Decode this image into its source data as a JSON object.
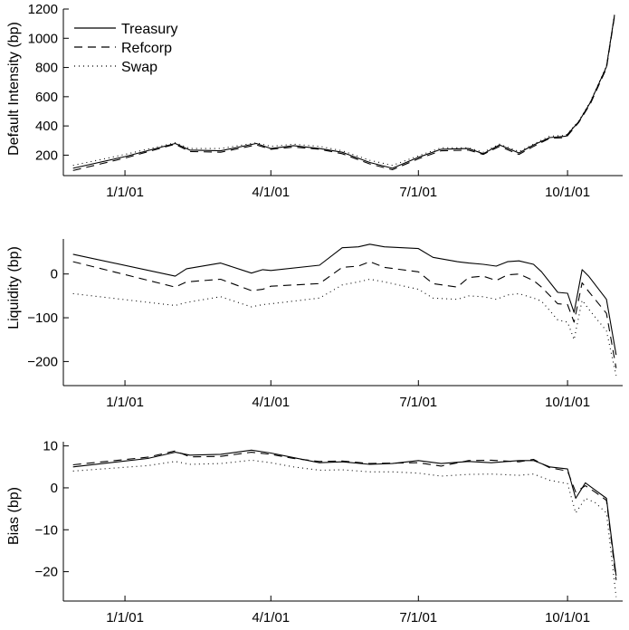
{
  "colors": {
    "axis": "#000000",
    "line": "#000000",
    "background": "#ffffff"
  },
  "chart_data": [
    {
      "type": "line",
      "id": "default",
      "ylabel": "Default Intensity (bp)",
      "xlabel": "",
      "ylim": [
        60,
        1200
      ],
      "yticks": [
        200,
        400,
        600,
        800,
        1000,
        1200
      ],
      "xlim": [
        "2000-11-24",
        "2001-11-04"
      ],
      "xticks": [
        "2001-01-01",
        "2001-04-01",
        "2001-07-01",
        "2001-10-01"
      ],
      "xtick_labels": [
        "1/1/01",
        "4/1/01",
        "7/1/01",
        "10/1/01"
      ],
      "legend": {
        "location": "top-left",
        "entries": [
          "Treasury",
          "Refcorp",
          "Swap"
        ]
      },
      "grid": false,
      "series": [
        {
          "name": "Treasury",
          "style": "solid",
          "x": [
            "2000-11-30",
            "2001-01-01",
            "2001-02-01",
            "2001-02-10",
            "2001-03-01",
            "2001-03-23",
            "2001-04-01",
            "2001-04-15",
            "2001-05-01",
            "2001-05-15",
            "2001-06-01",
            "2001-06-15",
            "2001-07-01",
            "2001-07-15",
            "2001-08-01",
            "2001-08-10",
            "2001-08-20",
            "2001-09-01",
            "2001-09-10",
            "2001-09-20",
            "2001-09-30",
            "2001-10-08",
            "2001-10-15",
            "2001-10-25",
            "2001-10-30"
          ],
          "y": [
            110,
            190,
            280,
            235,
            230,
            280,
            245,
            265,
            245,
            220,
            150,
            110,
            185,
            240,
            245,
            210,
            270,
            215,
            270,
            320,
            330,
            430,
            560,
            805,
            1160
          ]
        },
        {
          "name": "Refcorp",
          "style": "dashed",
          "x": [
            "2000-11-30",
            "2001-01-01",
            "2001-02-01",
            "2001-02-10",
            "2001-03-01",
            "2001-03-23",
            "2001-04-01",
            "2001-04-15",
            "2001-05-01",
            "2001-05-15",
            "2001-06-01",
            "2001-06-15",
            "2001-07-01",
            "2001-07-15",
            "2001-08-01",
            "2001-08-10",
            "2001-08-20",
            "2001-09-01",
            "2001-09-10",
            "2001-09-20",
            "2001-09-30",
            "2001-10-08",
            "2001-10-15",
            "2001-10-25",
            "2001-10-30"
          ],
          "y": [
            95,
            180,
            275,
            225,
            220,
            270,
            240,
            255,
            240,
            210,
            140,
            100,
            175,
            230,
            235,
            205,
            260,
            205,
            260,
            315,
            320,
            425,
            550,
            795,
            1150
          ]
        },
        {
          "name": "Swap",
          "style": "dotted",
          "x": [
            "2000-11-30",
            "2001-01-01",
            "2001-02-01",
            "2001-02-10",
            "2001-03-01",
            "2001-03-23",
            "2001-04-01",
            "2001-04-15",
            "2001-05-01",
            "2001-05-15",
            "2001-06-01",
            "2001-06-15",
            "2001-07-01",
            "2001-07-15",
            "2001-08-01",
            "2001-08-10",
            "2001-08-20",
            "2001-09-01",
            "2001-09-10",
            "2001-09-20",
            "2001-09-30",
            "2001-10-08",
            "2001-10-15",
            "2001-10-25",
            "2001-10-30"
          ],
          "y": [
            130,
            205,
            285,
            245,
            245,
            285,
            260,
            275,
            260,
            230,
            165,
            130,
            195,
            250,
            250,
            220,
            275,
            225,
            275,
            330,
            335,
            435,
            565,
            810,
            1165
          ]
        }
      ]
    },
    {
      "type": "line",
      "id": "liquidity",
      "ylabel": "Liquidity (bp)",
      "xlabel": "",
      "ylim": [
        -255,
        80
      ],
      "yticks": [
        -200,
        -100,
        0
      ],
      "yticks_labels": [
        "−200",
        "−100",
        "0"
      ],
      "xlim": [
        "2000-11-24",
        "2001-11-04"
      ],
      "xticks": [
        "2001-01-01",
        "2001-04-01",
        "2001-07-01",
        "2001-10-01"
      ],
      "xtick_labels": [
        "1/1/01",
        "4/1/01",
        "7/1/01",
        "10/1/01"
      ],
      "grid": false,
      "series": [
        {
          "name": "Treasury",
          "style": "solid",
          "x": [
            "2000-11-30",
            "2001-02-01",
            "2001-02-08",
            "2001-03-01",
            "2001-03-20",
            "2001-03-27",
            "2001-04-01",
            "2001-05-01",
            "2001-05-15",
            "2001-05-25",
            "2001-06-01",
            "2001-06-10",
            "2001-07-01",
            "2001-07-10",
            "2001-07-25",
            "2001-08-01",
            "2001-08-10",
            "2001-08-18",
            "2001-08-25",
            "2001-09-01",
            "2001-09-10",
            "2001-09-15",
            "2001-09-25",
            "2001-10-01",
            "2001-10-05",
            "2001-10-10",
            "2001-10-14",
            "2001-10-25",
            "2001-10-31"
          ],
          "y": [
            45,
            -5,
            12,
            25,
            2,
            10,
            8,
            20,
            60,
            62,
            68,
            62,
            58,
            38,
            28,
            25,
            22,
            18,
            28,
            30,
            22,
            5,
            -42,
            -44,
            -88,
            10,
            -5,
            -58,
            -185
          ]
        },
        {
          "name": "Refcorp",
          "style": "dashed",
          "x": [
            "2000-11-30",
            "2001-02-01",
            "2001-02-08",
            "2001-03-01",
            "2001-03-20",
            "2001-03-27",
            "2001-04-01",
            "2001-05-01",
            "2001-05-15",
            "2001-05-25",
            "2001-06-01",
            "2001-06-10",
            "2001-07-01",
            "2001-07-10",
            "2001-07-25",
            "2001-08-01",
            "2001-08-10",
            "2001-08-18",
            "2001-08-25",
            "2001-09-01",
            "2001-09-10",
            "2001-09-15",
            "2001-09-25",
            "2001-10-01",
            "2001-10-05",
            "2001-10-10",
            "2001-10-14",
            "2001-10-25",
            "2001-10-31"
          ],
          "y": [
            28,
            -30,
            -18,
            -12,
            -38,
            -35,
            -28,
            -22,
            15,
            18,
            28,
            15,
            5,
            -22,
            -30,
            -8,
            -5,
            -15,
            -2,
            0,
            -15,
            -30,
            -68,
            -70,
            -110,
            -20,
            -40,
            -90,
            -215
          ]
        },
        {
          "name": "Swap",
          "style": "dotted",
          "x": [
            "2000-11-30",
            "2001-02-01",
            "2001-02-08",
            "2001-03-01",
            "2001-03-20",
            "2001-03-27",
            "2001-04-01",
            "2001-05-01",
            "2001-05-15",
            "2001-05-25",
            "2001-06-01",
            "2001-06-10",
            "2001-07-01",
            "2001-07-10",
            "2001-07-25",
            "2001-08-01",
            "2001-08-10",
            "2001-08-18",
            "2001-08-25",
            "2001-09-01",
            "2001-09-10",
            "2001-09-15",
            "2001-09-25",
            "2001-10-01",
            "2001-10-05",
            "2001-10-10",
            "2001-10-14",
            "2001-10-25",
            "2001-10-31"
          ],
          "y": [
            -45,
            -72,
            -65,
            -52,
            -75,
            -70,
            -68,
            -55,
            -25,
            -18,
            -12,
            -18,
            -35,
            -55,
            -58,
            -50,
            -52,
            -58,
            -48,
            -45,
            -55,
            -62,
            -105,
            -110,
            -150,
            -60,
            -80,
            -130,
            -232
          ]
        }
      ]
    },
    {
      "type": "line",
      "id": "bias",
      "ylabel": "Bias (bp)",
      "xlabel": "",
      "ylim": [
        -27,
        11
      ],
      "yticks": [
        -20,
        -10,
        0,
        10
      ],
      "yticks_labels": [
        "−20",
        "−10",
        "0",
        "10"
      ],
      "xlim": [
        "2000-11-24",
        "2001-11-04"
      ],
      "xticks": [
        "2001-01-01",
        "2001-04-01",
        "2001-07-01",
        "2001-10-01"
      ],
      "xtick_labels": [
        "1/1/01",
        "4/1/01",
        "7/1/01",
        "10/1/01"
      ],
      "grid": false,
      "series": [
        {
          "name": "Treasury",
          "style": "solid",
          "x": [
            "2000-11-30",
            "2001-01-15",
            "2001-02-01",
            "2001-02-10",
            "2001-03-01",
            "2001-03-20",
            "2001-04-01",
            "2001-04-15",
            "2001-05-01",
            "2001-05-15",
            "2001-06-01",
            "2001-06-15",
            "2001-07-01",
            "2001-07-15",
            "2001-08-01",
            "2001-08-15",
            "2001-09-01",
            "2001-09-10",
            "2001-09-20",
            "2001-10-01",
            "2001-10-06",
            "2001-10-12",
            "2001-10-18",
            "2001-10-25",
            "2001-10-31"
          ],
          "y": [
            5.0,
            7.0,
            8.5,
            7.8,
            8.0,
            9.0,
            8.3,
            7.2,
            6.0,
            6.2,
            5.6,
            5.8,
            6.5,
            5.8,
            6.3,
            6.0,
            6.5,
            6.5,
            5.0,
            4.5,
            -2.5,
            1.2,
            -0.5,
            -2.5,
            -21
          ]
        },
        {
          "name": "Refcorp",
          "style": "dashed",
          "x": [
            "2000-11-30",
            "2001-01-15",
            "2001-02-01",
            "2001-02-10",
            "2001-03-01",
            "2001-03-20",
            "2001-04-01",
            "2001-04-15",
            "2001-05-01",
            "2001-05-15",
            "2001-06-01",
            "2001-06-15",
            "2001-07-01",
            "2001-07-15",
            "2001-08-01",
            "2001-08-15",
            "2001-09-01",
            "2001-09-10",
            "2001-09-20",
            "2001-10-01",
            "2001-10-06",
            "2001-10-12",
            "2001-10-18",
            "2001-10-25",
            "2001-10-31"
          ],
          "y": [
            5.5,
            7.3,
            8.8,
            7.4,
            7.5,
            8.5,
            8.0,
            7.0,
            6.3,
            6.4,
            5.8,
            5.9,
            6.0,
            5.2,
            6.5,
            6.6,
            6.2,
            6.8,
            4.8,
            4.0,
            -1.0,
            0.5,
            -1.0,
            -3.0,
            -22
          ]
        },
        {
          "name": "Swap",
          "style": "dotted",
          "x": [
            "2000-11-30",
            "2001-01-15",
            "2001-02-01",
            "2001-02-10",
            "2001-03-01",
            "2001-03-20",
            "2001-04-01",
            "2001-04-15",
            "2001-05-01",
            "2001-05-15",
            "2001-06-01",
            "2001-06-15",
            "2001-07-01",
            "2001-07-15",
            "2001-08-01",
            "2001-08-15",
            "2001-09-01",
            "2001-09-10",
            "2001-09-20",
            "2001-10-01",
            "2001-10-06",
            "2001-10-12",
            "2001-10-18",
            "2001-10-25",
            "2001-10-31"
          ],
          "y": [
            4.0,
            5.3,
            6.3,
            5.6,
            5.8,
            6.6,
            6.0,
            5.0,
            4.2,
            4.3,
            3.8,
            3.8,
            3.5,
            2.8,
            3.2,
            3.3,
            3.0,
            3.3,
            1.8,
            1.0,
            -6.0,
            -2.5,
            -3.5,
            -6.0,
            -26
          ]
        }
      ]
    }
  ]
}
